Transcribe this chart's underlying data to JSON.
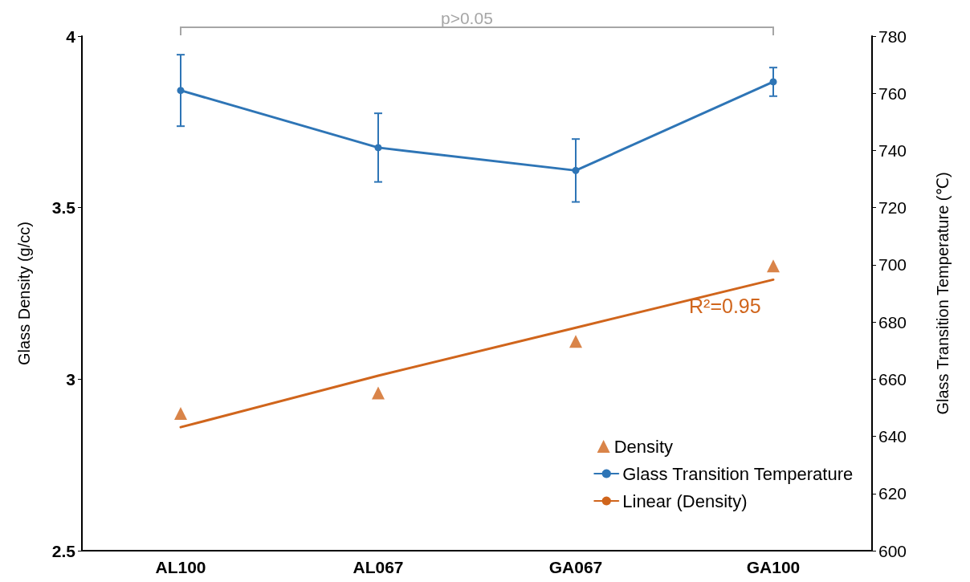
{
  "chart_data": {
    "type": "line",
    "ylabel": "Glass Density (g/cc)",
    "y2label": "Glass Transition Temperature (℃)",
    "categories": [
      "AL100",
      "AL067",
      "GA067",
      "GA100"
    ],
    "series": [
      {
        "name": "Density",
        "type": "scatter",
        "marker": "triangle",
        "color": "#d0651c",
        "values": [
          2.9,
          2.96,
          3.11,
          3.33
        ]
      },
      {
        "name": "Glass Transition Temperature",
        "axis": "y2",
        "marker": "circle",
        "color": "#2e75b6",
        "values": [
          761,
          741,
          733,
          764
        ],
        "errors": [
          12.5,
          12,
          11,
          5
        ]
      },
      {
        "name": "Linear (Density)",
        "type": "line",
        "marker": "none",
        "color": "#d0651c",
        "values": [
          2.86,
          3.01,
          3.15,
          3.29
        ]
      }
    ],
    "ylim": [
      2.5,
      4
    ],
    "yticks": [
      2.5,
      3,
      3.5,
      4
    ],
    "y2lim": [
      600,
      780
    ],
    "y2ticks": [
      600,
      620,
      640,
      660,
      680,
      700,
      720,
      740,
      760,
      780
    ],
    "grid": false,
    "legend": "bottom right",
    "annotations": [
      "p>0.05",
      "R²=0.95"
    ]
  }
}
